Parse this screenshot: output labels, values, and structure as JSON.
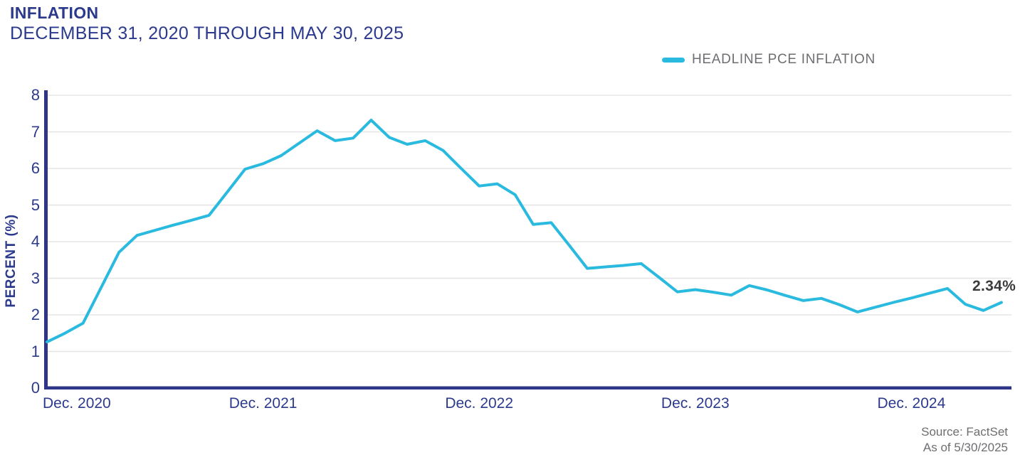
{
  "header": {
    "title": "INFLATION",
    "subtitle": "DECEMBER 31, 2020 THROUGH MAY 30, 2025"
  },
  "legend": {
    "label": "HEADLINE PCE INFLATION"
  },
  "footer": {
    "source": "Source: FactSet",
    "as_of": "As of 5/30/2025"
  },
  "colors": {
    "line": "#2ABADF",
    "navy_text": "#2B3A8C",
    "axis": "#2E3487",
    "grid": "#E5E5E5",
    "muted_text": "#6D6E71",
    "value_label": "#3C3C3E"
  },
  "chart_data": {
    "type": "line",
    "title": "INFLATION",
    "subtitle": "DECEMBER 31, 2020 THROUGH MAY 30, 2025",
    "ylabel": "PERCENT (%)",
    "ylim": [
      0,
      8
    ],
    "yticks": [
      0,
      1,
      2,
      3,
      4,
      5,
      6,
      7,
      8
    ],
    "grid": "horizontal",
    "legend_position": "top-right",
    "x_start": "Dec 2020",
    "x_end": "May 2025",
    "x_frequency": "monthly",
    "xtick_labels": [
      "Dec. 2020",
      "Dec. 2021",
      "Dec. 2022",
      "Dec. 2023",
      "Dec. 2024"
    ],
    "xtick_month_indices": [
      0,
      12,
      24,
      36,
      48
    ],
    "end_label": "2.34%",
    "end_value": 2.34,
    "series": [
      {
        "name": "HEADLINE PCE INFLATION",
        "color": "#2ABADF",
        "values": [
          1.26,
          1.5,
          1.77,
          2.74,
          3.71,
          4.17,
          4.31,
          4.45,
          4.58,
          4.72,
          5.35,
          5.98,
          6.13,
          6.35,
          6.69,
          7.03,
          6.76,
          6.83,
          7.32,
          6.85,
          6.66,
          6.76,
          6.49,
          6.0,
          5.52,
          5.58,
          5.28,
          4.47,
          4.52,
          3.9,
          3.27,
          3.31,
          3.35,
          3.4,
          3.02,
          2.63,
          2.69,
          2.62,
          2.54,
          2.8,
          2.68,
          2.53,
          2.39,
          2.45,
          2.28,
          2.08,
          2.21,
          2.34,
          2.46,
          2.59,
          2.72,
          2.29,
          2.12,
          2.34
        ]
      }
    ]
  }
}
